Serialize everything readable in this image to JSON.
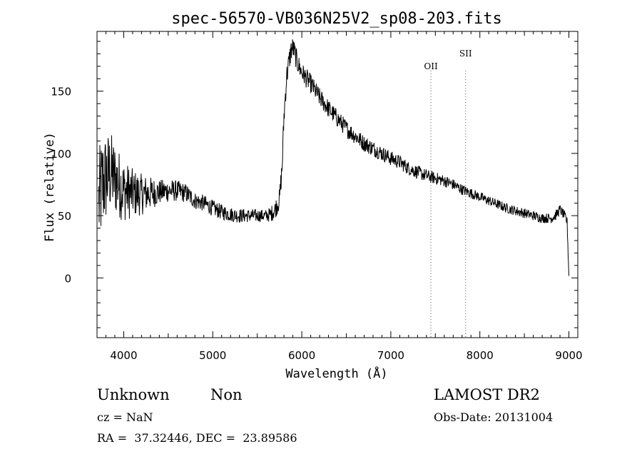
{
  "chart_data": {
    "type": "line",
    "title": "spec-56570-VB036N25V2_sp08-203.fits",
    "xlabel": "Wavelength (Å)",
    "ylabel": "Flux (relative)",
    "xlim": [
      3700,
      9100
    ],
    "ylim": [
      -48,
      198
    ],
    "x_ticks": [
      4000,
      5000,
      6000,
      7000,
      8000,
      9000
    ],
    "x_tick_labels": [
      "4000",
      "5000",
      "6000",
      "7000",
      "8000",
      "9000"
    ],
    "y_ticks": [
      0,
      50,
      100,
      150
    ],
    "y_tick_labels": [
      "0",
      "50",
      "100",
      "150"
    ],
    "grid": false,
    "legend": "none",
    "line_color": "#000000",
    "spectrum": {
      "x": [
        3720,
        3760,
        3800,
        3850,
        3900,
        3950,
        4000,
        4100,
        4200,
        4300,
        4400,
        4500,
        4600,
        4700,
        4800,
        4900,
        5000,
        5100,
        5200,
        5300,
        5400,
        5500,
        5600,
        5650,
        5700,
        5750,
        5780,
        5800,
        5830,
        5860,
        5880,
        5900,
        5920,
        5950,
        6000,
        6100,
        6200,
        6300,
        6400,
        6500,
        6600,
        6700,
        6800,
        6900,
        7000,
        7100,
        7200,
        7300,
        7400,
        7500,
        7600,
        7700,
        7800,
        7900,
        8000,
        8100,
        8200,
        8300,
        8400,
        8500,
        8600,
        8700,
        8800,
        8850,
        8900,
        8950,
        8980,
        9000
      ],
      "y": [
        60,
        75,
        80,
        85,
        80,
        75,
        70,
        68,
        67,
        68,
        69,
        70,
        70,
        68,
        62,
        60,
        56,
        53,
        51,
        50,
        50,
        50,
        50,
        51,
        55,
        63,
        90,
        130,
        162,
        175,
        183,
        185,
        181,
        173,
        165,
        156,
        145,
        136,
        128,
        120,
        114,
        108,
        104,
        100,
        96,
        93,
        88,
        85,
        82,
        80,
        78,
        75,
        71,
        68,
        65,
        62,
        59,
        56,
        54,
        52,
        50,
        48,
        48,
        50,
        55,
        50,
        45,
        2
      ],
      "noise_profile": {
        "x": [
          3700,
          3900,
          4100,
          4400,
          4800,
          5600,
          5800,
          6000,
          7000,
          8000,
          9000
        ],
        "amplitude": [
          45,
          30,
          20,
          10,
          7,
          5,
          10,
          8,
          6,
          4,
          4
        ]
      }
    },
    "annotations": [
      {
        "label": "OII",
        "x": 7450
      },
      {
        "label": "SII",
        "x": 7840
      }
    ]
  },
  "info": {
    "object_class": "Unknown",
    "subclass": "Non",
    "redshift": "cz = NaN",
    "coordinates": "RA =  37.32446, DEC =  23.89586",
    "survey": "LAMOST DR2",
    "obs_date": "Obs-Date: 20131004"
  }
}
